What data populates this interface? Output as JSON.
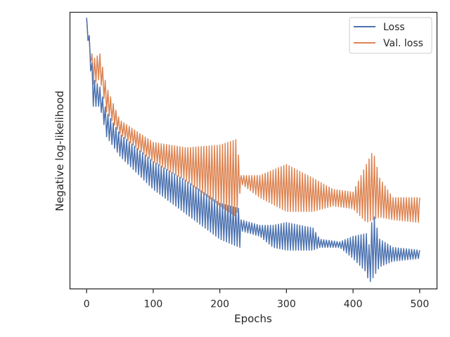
{
  "chart_data": {
    "type": "line",
    "title": "",
    "xlabel": "Epochs",
    "ylabel": "Negative log-likelihood",
    "xlim": [
      -25,
      526
    ],
    "ylim": [
      0.0,
      1.0
    ],
    "y_ticks_visible": false,
    "x_ticks": [
      0,
      100,
      200,
      300,
      400,
      500
    ],
    "x_tick_labels": [
      "0",
      "100",
      "200",
      "300",
      "400",
      "500"
    ],
    "grid": false,
    "legend_position": "top-right",
    "series": [
      {
        "name": "Loss",
        "color": "#4c72b0",
        "envelope": [
          {
            "x": 0,
            "lo": 0.95,
            "hi": 0.98
          },
          {
            "x": 5,
            "lo": 0.82,
            "hi": 0.9
          },
          {
            "x": 10,
            "lo": 0.66,
            "hi": 0.76
          },
          {
            "x": 20,
            "lo": 0.66,
            "hi": 0.73
          },
          {
            "x": 30,
            "lo": 0.55,
            "hi": 0.64
          },
          {
            "x": 50,
            "lo": 0.48,
            "hi": 0.56
          },
          {
            "x": 100,
            "lo": 0.36,
            "hi": 0.46
          },
          {
            "x": 150,
            "lo": 0.27,
            "hi": 0.39
          },
          {
            "x": 200,
            "lo": 0.18,
            "hi": 0.31
          },
          {
            "x": 230,
            "lo": 0.15,
            "hi": 0.29
          },
          {
            "x": 232,
            "lo": 0.21,
            "hi": 0.25
          },
          {
            "x": 260,
            "lo": 0.19,
            "hi": 0.23
          },
          {
            "x": 280,
            "lo": 0.15,
            "hi": 0.23
          },
          {
            "x": 300,
            "lo": 0.14,
            "hi": 0.24
          },
          {
            "x": 340,
            "lo": 0.14,
            "hi": 0.22
          },
          {
            "x": 350,
            "lo": 0.15,
            "hi": 0.18
          },
          {
            "x": 380,
            "lo": 0.15,
            "hi": 0.17
          },
          {
            "x": 400,
            "lo": 0.11,
            "hi": 0.19
          },
          {
            "x": 420,
            "lo": 0.06,
            "hi": 0.2
          },
          {
            "x": 424,
            "lo": 0.02,
            "hi": 0.16
          },
          {
            "x": 430,
            "lo": 0.04,
            "hi": 0.28
          },
          {
            "x": 440,
            "lo": 0.08,
            "hi": 0.18
          },
          {
            "x": 460,
            "lo": 0.1,
            "hi": 0.15
          },
          {
            "x": 500,
            "lo": 0.11,
            "hi": 0.14
          }
        ]
      },
      {
        "name": "Val. loss",
        "color": "#dd8452",
        "envelope": [
          {
            "x": 0,
            "lo": 0.95,
            "hi": 0.98
          },
          {
            "x": 5,
            "lo": 0.84,
            "hi": 0.88
          },
          {
            "x": 10,
            "lo": 0.74,
            "hi": 0.83
          },
          {
            "x": 20,
            "lo": 0.76,
            "hi": 0.85
          },
          {
            "x": 30,
            "lo": 0.64,
            "hi": 0.73
          },
          {
            "x": 50,
            "lo": 0.56,
            "hi": 0.61
          },
          {
            "x": 100,
            "lo": 0.46,
            "hi": 0.53
          },
          {
            "x": 150,
            "lo": 0.39,
            "hi": 0.51
          },
          {
            "x": 200,
            "lo": 0.3,
            "hi": 0.52
          },
          {
            "x": 225,
            "lo": 0.26,
            "hi": 0.54
          },
          {
            "x": 232,
            "lo": 0.38,
            "hi": 0.41
          },
          {
            "x": 260,
            "lo": 0.33,
            "hi": 0.41
          },
          {
            "x": 300,
            "lo": 0.28,
            "hi": 0.45
          },
          {
            "x": 340,
            "lo": 0.28,
            "hi": 0.4
          },
          {
            "x": 370,
            "lo": 0.3,
            "hi": 0.36
          },
          {
            "x": 400,
            "lo": 0.29,
            "hi": 0.35
          },
          {
            "x": 420,
            "lo": 0.24,
            "hi": 0.45
          },
          {
            "x": 430,
            "lo": 0.25,
            "hi": 0.5
          },
          {
            "x": 440,
            "lo": 0.26,
            "hi": 0.4
          },
          {
            "x": 460,
            "lo": 0.25,
            "hi": 0.33
          },
          {
            "x": 500,
            "lo": 0.24,
            "hi": 0.33
          }
        ]
      }
    ]
  }
}
